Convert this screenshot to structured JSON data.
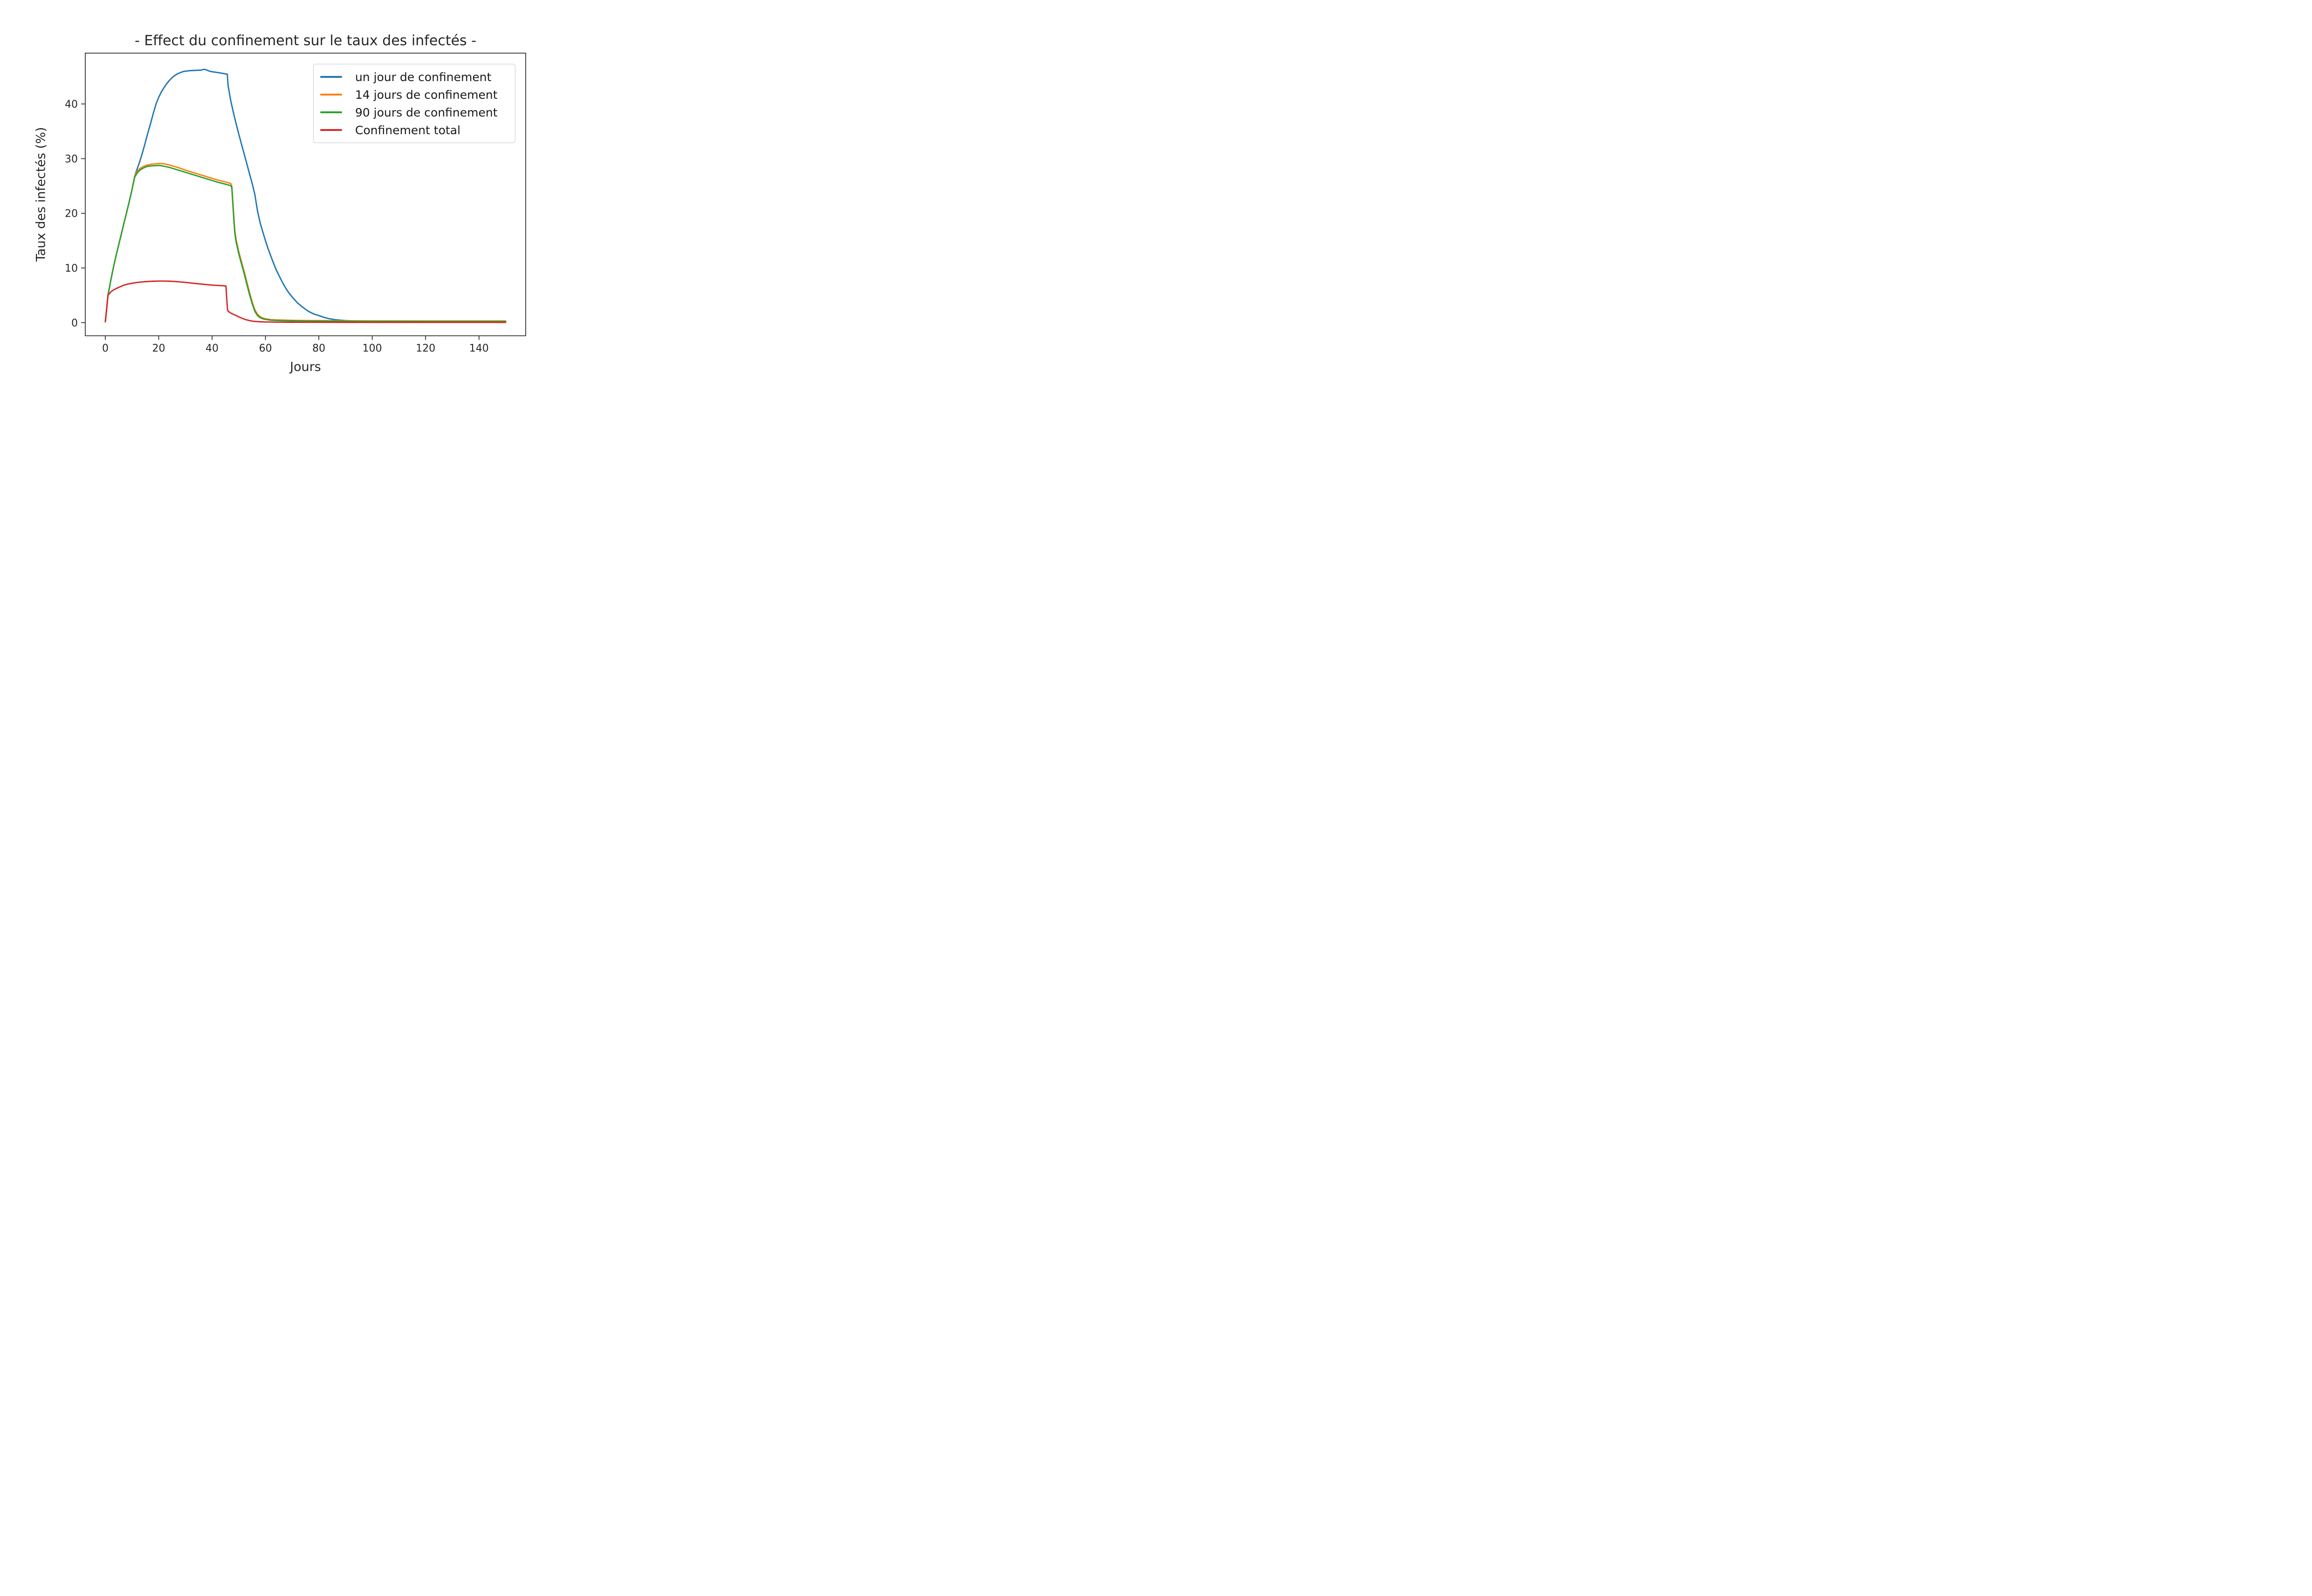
{
  "figure": {
    "background": "#ffffff",
    "frame_color": "#2b2b2b",
    "text_color": "#262626"
  },
  "chart_data": {
    "type": "line",
    "title": "- Effect du confinement sur le taux des infectés -",
    "xlabel": "Jours",
    "ylabel": "Taux des infectés (%)",
    "x_ticks": [
      0,
      20,
      40,
      60,
      80,
      100,
      120,
      140
    ],
    "y_ticks": [
      0,
      10,
      20,
      30,
      40
    ],
    "xlim": [
      -7.5,
      157.5
    ],
    "ylim": [
      -2.4,
      49.3
    ],
    "grid": false,
    "legend_position": "upper right",
    "series": [
      {
        "name": "un jour de confinement",
        "color": "#1f77b4",
        "points": [
          [
            0,
            0.15
          ],
          [
            0.5,
            2.5
          ],
          [
            1,
            5
          ],
          [
            2,
            7.6
          ],
          [
            3,
            10
          ],
          [
            4,
            12.2
          ],
          [
            5,
            14.2
          ],
          [
            6,
            16.2
          ],
          [
            7,
            18.2
          ],
          [
            8,
            20.2
          ],
          [
            9,
            22.2
          ],
          [
            10,
            24.3
          ],
          [
            11,
            26.8
          ],
          [
            12,
            28.2
          ],
          [
            13,
            29.6
          ],
          [
            14,
            31.2
          ],
          [
            15,
            33
          ],
          [
            16,
            34.8
          ],
          [
            17,
            36.5
          ],
          [
            18,
            38.3
          ],
          [
            19,
            40
          ],
          [
            20,
            41.2
          ],
          [
            21,
            42.2
          ],
          [
            22,
            43
          ],
          [
            23,
            43.7
          ],
          [
            24,
            44.3
          ],
          [
            25,
            44.8
          ],
          [
            26,
            45.2
          ],
          [
            27,
            45.5
          ],
          [
            28,
            45.7
          ],
          [
            29,
            45.9
          ],
          [
            30,
            46
          ],
          [
            32,
            46.1
          ],
          [
            34,
            46.15
          ],
          [
            36,
            46.2
          ],
          [
            37,
            46.35
          ],
          [
            38,
            46.2
          ],
          [
            39,
            46
          ],
          [
            40,
            45.9
          ],
          [
            42,
            45.75
          ],
          [
            44,
            45.6
          ],
          [
            45,
            45.5
          ],
          [
            45.7,
            45.45
          ],
          [
            46,
            43.4
          ],
          [
            47,
            40.6
          ],
          [
            48,
            38.4
          ],
          [
            49,
            36.4
          ],
          [
            50,
            34.5
          ],
          [
            51,
            32.7
          ],
          [
            52,
            30.9
          ],
          [
            53,
            29.1
          ],
          [
            54,
            27.3
          ],
          [
            55,
            25.5
          ],
          [
            56,
            23.5
          ],
          [
            57,
            20.5
          ],
          [
            58,
            18.3
          ],
          [
            59,
            16.6
          ],
          [
            60,
            15
          ],
          [
            61,
            13.5
          ],
          [
            62,
            12.2
          ],
          [
            63,
            10.9
          ],
          [
            64,
            9.7
          ],
          [
            65,
            8.7
          ],
          [
            66,
            7.7
          ],
          [
            67,
            6.8
          ],
          [
            68,
            6
          ],
          [
            69,
            5.3
          ],
          [
            70,
            4.7
          ],
          [
            72,
            3.6
          ],
          [
            74,
            2.8
          ],
          [
            76,
            2.1
          ],
          [
            78,
            1.6
          ],
          [
            80,
            1.3
          ],
          [
            82,
            0.95
          ],
          [
            84,
            0.7
          ],
          [
            86,
            0.55
          ],
          [
            88,
            0.45
          ],
          [
            90,
            0.38
          ],
          [
            95,
            0.28
          ],
          [
            100,
            0.24
          ],
          [
            110,
            0.2
          ],
          [
            120,
            0.2
          ],
          [
            150,
            0.2
          ]
        ]
      },
      {
        "name": "14 jours de confinement",
        "color": "#ff7f0e",
        "points": [
          [
            0,
            0.15
          ],
          [
            0.5,
            2.5
          ],
          [
            1,
            5
          ],
          [
            2,
            7.6
          ],
          [
            3,
            10
          ],
          [
            4,
            12.2
          ],
          [
            5,
            14.2
          ],
          [
            6,
            16.2
          ],
          [
            7,
            18.2
          ],
          [
            8,
            20.2
          ],
          [
            9,
            22.2
          ],
          [
            10,
            24.3
          ],
          [
            11,
            26.8
          ],
          [
            12,
            27.7
          ],
          [
            13,
            28.2
          ],
          [
            14,
            28.5
          ],
          [
            15,
            28.7
          ],
          [
            16,
            28.85
          ],
          [
            17,
            28.95
          ],
          [
            18,
            29
          ],
          [
            19,
            29.05
          ],
          [
            20,
            29.1
          ],
          [
            21,
            29.1
          ],
          [
            22,
            29.05
          ],
          [
            23,
            28.95
          ],
          [
            24,
            28.85
          ],
          [
            25,
            28.7
          ],
          [
            26,
            28.55
          ],
          [
            27,
            28.4
          ],
          [
            28,
            28.25
          ],
          [
            30,
            27.9
          ],
          [
            32,
            27.6
          ],
          [
            34,
            27.3
          ],
          [
            36,
            27
          ],
          [
            38,
            26.7
          ],
          [
            40,
            26.4
          ],
          [
            42,
            26.1
          ],
          [
            44,
            25.85
          ],
          [
            46,
            25.6
          ],
          [
            47,
            25.45
          ],
          [
            47.4,
            25
          ],
          [
            48,
            20.5
          ],
          [
            48.5,
            17
          ],
          [
            49,
            15.2
          ],
          [
            50,
            13
          ],
          [
            51,
            11.2
          ],
          [
            52,
            9.4
          ],
          [
            53,
            7.5
          ],
          [
            54,
            5.6
          ],
          [
            55,
            3.8
          ],
          [
            56,
            2.4
          ],
          [
            57,
            1.55
          ],
          [
            58,
            1.1
          ],
          [
            59,
            0.85
          ],
          [
            60,
            0.7
          ],
          [
            62,
            0.55
          ],
          [
            64,
            0.5
          ],
          [
            66,
            0.47
          ],
          [
            70,
            0.42
          ],
          [
            75,
            0.38
          ],
          [
            80,
            0.36
          ],
          [
            90,
            0.33
          ],
          [
            100,
            0.31
          ],
          [
            120,
            0.3
          ],
          [
            150,
            0.3
          ]
        ]
      },
      {
        "name": "90 jours de confinement",
        "color": "#2ca02c",
        "points": [
          [
            0,
            0.15
          ],
          [
            0.5,
            2.5
          ],
          [
            1,
            5
          ],
          [
            2,
            7.6
          ],
          [
            3,
            10
          ],
          [
            4,
            12.2
          ],
          [
            5,
            14.2
          ],
          [
            6,
            16.2
          ],
          [
            7,
            18.2
          ],
          [
            8,
            20.2
          ],
          [
            9,
            22.2
          ],
          [
            10,
            24.3
          ],
          [
            11,
            26.6
          ],
          [
            12,
            27.4
          ],
          [
            13,
            27.9
          ],
          [
            14,
            28.2
          ],
          [
            15,
            28.45
          ],
          [
            16,
            28.6
          ],
          [
            17,
            28.65
          ],
          [
            18,
            28.7
          ],
          [
            19,
            28.72
          ],
          [
            20,
            28.75
          ],
          [
            21,
            28.7
          ],
          [
            22,
            28.6
          ],
          [
            23,
            28.5
          ],
          [
            24,
            28.4
          ],
          [
            25,
            28.25
          ],
          [
            26,
            28.1
          ],
          [
            27,
            27.95
          ],
          [
            28,
            27.8
          ],
          [
            30,
            27.5
          ],
          [
            32,
            27.2
          ],
          [
            34,
            26.9
          ],
          [
            36,
            26.6
          ],
          [
            38,
            26.3
          ],
          [
            40,
            26
          ],
          [
            42,
            25.7
          ],
          [
            44,
            25.45
          ],
          [
            46,
            25.2
          ],
          [
            47,
            25.05
          ],
          [
            47.4,
            24.7
          ],
          [
            48,
            20
          ],
          [
            48.5,
            16.5
          ],
          [
            49,
            14.8
          ],
          [
            50,
            12.6
          ],
          [
            51,
            10.8
          ],
          [
            52,
            9
          ],
          [
            53,
            7.1
          ],
          [
            54,
            5.2
          ],
          [
            55,
            3.5
          ],
          [
            56,
            2.1
          ],
          [
            57,
            1.3
          ],
          [
            58,
            0.9
          ],
          [
            59,
            0.7
          ],
          [
            60,
            0.58
          ],
          [
            62,
            0.45
          ],
          [
            64,
            0.4
          ],
          [
            66,
            0.37
          ],
          [
            70,
            0.33
          ],
          [
            75,
            0.3
          ],
          [
            80,
            0.28
          ],
          [
            90,
            0.25
          ],
          [
            100,
            0.23
          ],
          [
            120,
            0.22
          ],
          [
            150,
            0.22
          ]
        ]
      },
      {
        "name": "Confinement total",
        "color": "#d62728",
        "points": [
          [
            0,
            0.15
          ],
          [
            0.3,
            1.5
          ],
          [
            0.7,
            3.5
          ],
          [
            1,
            5
          ],
          [
            2,
            5.6
          ],
          [
            3,
            5.95
          ],
          [
            4,
            6.2
          ],
          [
            5,
            6.45
          ],
          [
            6,
            6.65
          ],
          [
            7,
            6.85
          ],
          [
            8,
            7
          ],
          [
            9,
            7.1
          ],
          [
            10,
            7.2
          ],
          [
            12,
            7.35
          ],
          [
            14,
            7.45
          ],
          [
            16,
            7.52
          ],
          [
            18,
            7.57
          ],
          [
            20,
            7.6
          ],
          [
            22,
            7.6
          ],
          [
            24,
            7.57
          ],
          [
            26,
            7.52
          ],
          [
            28,
            7.45
          ],
          [
            30,
            7.35
          ],
          [
            32,
            7.25
          ],
          [
            34,
            7.15
          ],
          [
            36,
            7.05
          ],
          [
            38,
            6.95
          ],
          [
            40,
            6.87
          ],
          [
            42,
            6.8
          ],
          [
            44,
            6.75
          ],
          [
            45.2,
            6.7
          ],
          [
            45.5,
            4.4
          ],
          [
            45.8,
            2.3
          ],
          [
            46,
            2.1
          ],
          [
            47,
            1.75
          ],
          [
            48,
            1.5
          ],
          [
            49,
            1.3
          ],
          [
            50,
            1.05
          ],
          [
            51,
            0.85
          ],
          [
            52,
            0.65
          ],
          [
            53,
            0.5
          ],
          [
            54,
            0.38
          ],
          [
            55,
            0.28
          ],
          [
            56,
            0.22
          ],
          [
            58,
            0.16
          ],
          [
            60,
            0.12
          ],
          [
            65,
            0.09
          ],
          [
            70,
            0.07
          ],
          [
            80,
            0.06
          ],
          [
            100,
            0.05
          ],
          [
            120,
            0.05
          ],
          [
            150,
            0.05
          ]
        ]
      }
    ]
  }
}
